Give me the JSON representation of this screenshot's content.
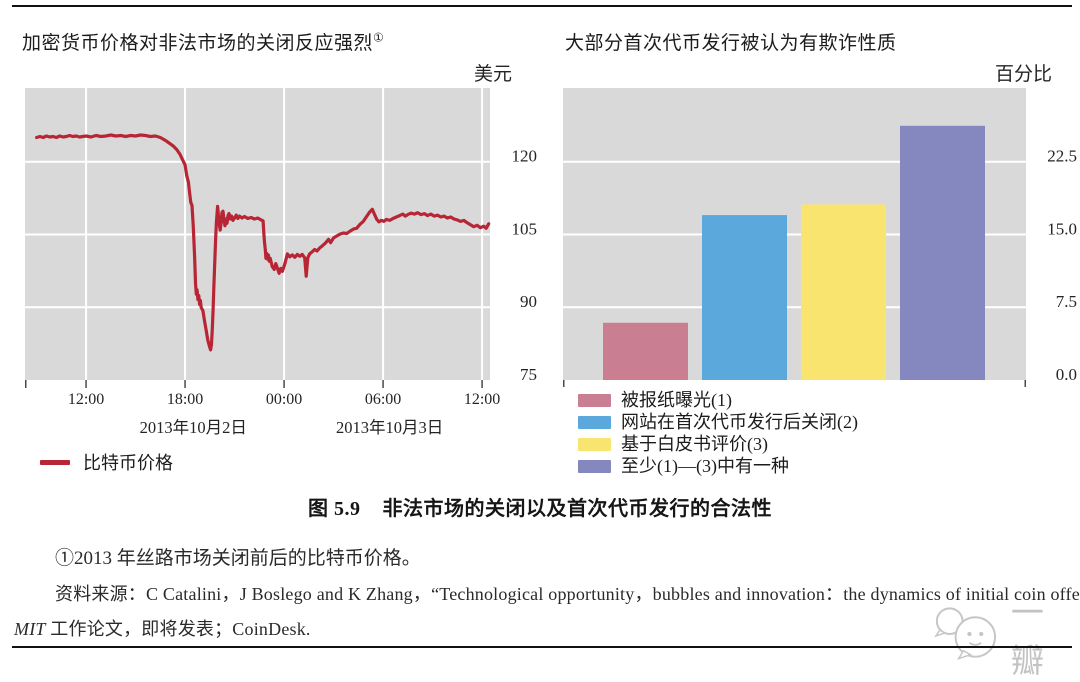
{
  "page": {
    "caption_label": "图 5.9",
    "caption_title": "非法市场的关闭以及首次代币发行的合法性",
    "footnote": "①2013 年丝路市场关闭前后的比特币价格。",
    "source_line1": "资料来源：C Catalini，J Boslego and K Zhang，“Technological opportunity，bubbles and innovation：the dynamics of initial coin offerings”，",
    "source_italic": "MIT",
    "source_line2_rest": " 工作论文，即将发表；CoinDesk.",
    "watermark_text": "一瓣"
  },
  "chart_data": [
    {
      "type": "line",
      "title": "加密货币价格对非法市场的关闭反应强烈",
      "title_sup": "①",
      "unit_label": "美元",
      "plot_bg": "#d9d9d9",
      "grid_color": "#ffffff",
      "x_ticks": [
        "12:00",
        "18:00",
        "00:00",
        "06:00",
        "12:00"
      ],
      "x_tick_hours": [
        0,
        6,
        12,
        18,
        24
      ],
      "x_date_labels": [
        "2013年10月2日",
        "2013年10月3日"
      ],
      "y_tick_labels": [
        "75",
        "90",
        "105",
        "120"
      ],
      "y_tick_values": [
        75,
        90,
        105,
        120
      ],
      "ylim": [
        75,
        135.2
      ],
      "xlim_hours": [
        -3.7,
        24.48
      ],
      "series": [
        {
          "name": "比特币价格",
          "color": "#b82534",
          "points": [
            [
              -3.0,
              125.0
            ],
            [
              -2.8,
              125.2
            ],
            [
              -2.6,
              125.0
            ],
            [
              -2.4,
              125.3
            ],
            [
              -2.2,
              125.1
            ],
            [
              -2.0,
              125.2
            ],
            [
              -1.8,
              125.0
            ],
            [
              -1.6,
              125.3
            ],
            [
              -1.4,
              125.1
            ],
            [
              -1.2,
              125.2
            ],
            [
              -1.0,
              125.4
            ],
            [
              -0.8,
              125.2
            ],
            [
              -0.6,
              125.3
            ],
            [
              -0.4,
              125.1
            ],
            [
              -0.2,
              125.2
            ],
            [
              0.0,
              125.3
            ],
            [
              0.3,
              125.1
            ],
            [
              0.6,
              125.4
            ],
            [
              0.9,
              125.2
            ],
            [
              1.2,
              125.3
            ],
            [
              1.5,
              125.5
            ],
            [
              1.8,
              125.3
            ],
            [
              2.1,
              125.4
            ],
            [
              2.4,
              125.2
            ],
            [
              2.7,
              125.4
            ],
            [
              3.0,
              125.3
            ],
            [
              3.3,
              125.5
            ],
            [
              3.6,
              125.4
            ],
            [
              3.9,
              125.2
            ],
            [
              4.2,
              125.3
            ],
            [
              4.5,
              125.0
            ],
            [
              4.7,
              124.6
            ],
            [
              4.9,
              124.2
            ],
            [
              5.1,
              123.7
            ],
            [
              5.3,
              123.2
            ],
            [
              5.5,
              122.5
            ],
            [
              5.7,
              121.5
            ],
            [
              5.85,
              120.4
            ],
            [
              6.0,
              119.3
            ],
            [
              6.1,
              117.2
            ],
            [
              6.2,
              115.8
            ],
            [
              6.28,
              113.4
            ],
            [
              6.35,
              111.6
            ],
            [
              6.42,
              111.0
            ],
            [
              6.5,
              106.5
            ],
            [
              6.58,
              100.5
            ],
            [
              6.63,
              95.0
            ],
            [
              6.68,
              92.7
            ],
            [
              6.73,
              93.6
            ],
            [
              6.78,
              91.6
            ],
            [
              6.83,
              92.4
            ],
            [
              6.88,
              90.6
            ],
            [
              6.93,
              91.4
            ],
            [
              6.98,
              89.9
            ],
            [
              7.08,
              89.3
            ],
            [
              7.18,
              87.2
            ],
            [
              7.28,
              85.2
            ],
            [
              7.38,
              83.2
            ],
            [
              7.48,
              81.9
            ],
            [
              7.55,
              81.2
            ],
            [
              7.6,
              82.4
            ],
            [
              7.65,
              85.5
            ],
            [
              7.7,
              89.5
            ],
            [
              7.75,
              94.5
            ],
            [
              7.8,
              99.5
            ],
            [
              7.85,
              104.0
            ],
            [
              7.9,
              107.5
            ],
            [
              7.97,
              110.8
            ],
            [
              8.03,
              108.5
            ],
            [
              8.08,
              107.0
            ],
            [
              8.13,
              105.9
            ],
            [
              8.18,
              107.2
            ],
            [
              8.24,
              109.6
            ],
            [
              8.3,
              109.8
            ],
            [
              8.36,
              107.9
            ],
            [
              8.42,
              106.8
            ],
            [
              8.48,
              108.2
            ],
            [
              8.54,
              107.3
            ],
            [
              8.6,
              108.9
            ],
            [
              8.66,
              109.3
            ],
            [
              8.74,
              108.2
            ],
            [
              8.82,
              108.8
            ],
            [
              8.9,
              107.9
            ],
            [
              9.0,
              108.4
            ],
            [
              9.1,
              109.0
            ],
            [
              9.2,
              108.3
            ],
            [
              9.3,
              108.8
            ],
            [
              9.45,
              108.4
            ],
            [
              9.6,
              108.7
            ],
            [
              9.8,
              108.3
            ],
            [
              10.0,
              108.5
            ],
            [
              10.2,
              108.2
            ],
            [
              10.4,
              108.4
            ],
            [
              10.55,
              108.1
            ],
            [
              10.73,
              107.8
            ],
            [
              10.78,
              105.0
            ],
            [
              10.82,
              103.2
            ],
            [
              10.86,
              101.9
            ],
            [
              10.9,
              100.1
            ],
            [
              10.95,
              101.1
            ],
            [
              11.0,
              99.9
            ],
            [
              11.05,
              100.8
            ],
            [
              11.1,
              99.5
            ],
            [
              11.16,
              100.1
            ],
            [
              11.28,
              98.4
            ],
            [
              11.4,
              97.8
            ],
            [
              11.5,
              99.0
            ],
            [
              11.6,
              98.0
            ],
            [
              11.7,
              97.0
            ],
            [
              11.8,
              98.0
            ],
            [
              11.9,
              97.4
            ],
            [
              12.05,
              99.0
            ],
            [
              12.2,
              101.0
            ],
            [
              12.35,
              100.4
            ],
            [
              12.5,
              100.8
            ],
            [
              12.65,
              100.3
            ],
            [
              12.8,
              100.9
            ],
            [
              12.95,
              100.5
            ],
            [
              13.1,
              100.9
            ],
            [
              13.25,
              100.2
            ],
            [
              13.34,
              96.4
            ],
            [
              13.44,
              100.2
            ],
            [
              13.55,
              101.0
            ],
            [
              13.7,
              101.4
            ],
            [
              13.85,
              101.9
            ],
            [
              14.0,
              101.6
            ],
            [
              14.15,
              102.2
            ],
            [
              14.3,
              102.6
            ],
            [
              14.5,
              103.2
            ],
            [
              14.7,
              104.0
            ],
            [
              14.82,
              103.3
            ],
            [
              15.0,
              104.3
            ],
            [
              15.2,
              104.7
            ],
            [
              15.4,
              105.1
            ],
            [
              15.6,
              105.3
            ],
            [
              15.8,
              105.2
            ],
            [
              16.0,
              105.7
            ],
            [
              16.2,
              106.1
            ],
            [
              16.4,
              106.3
            ],
            [
              16.6,
              107.1
            ],
            [
              16.8,
              107.7
            ],
            [
              17.0,
              108.7
            ],
            [
              17.2,
              109.7
            ],
            [
              17.35,
              110.2
            ],
            [
              17.5,
              109.0
            ],
            [
              17.62,
              108.1
            ],
            [
              17.75,
              107.6
            ],
            [
              17.9,
              107.9
            ],
            [
              18.05,
              107.7
            ],
            [
              18.2,
              108.1
            ],
            [
              18.4,
              107.9
            ],
            [
              18.6,
              108.3
            ],
            [
              18.8,
              108.6
            ],
            [
              19.0,
              108.9
            ],
            [
              19.2,
              109.2
            ],
            [
              19.35,
              108.8
            ],
            [
              19.5,
              109.1
            ],
            [
              19.7,
              109.4
            ],
            [
              19.9,
              109.2
            ],
            [
              20.1,
              109.5
            ],
            [
              20.3,
              109.1
            ],
            [
              20.5,
              109.3
            ],
            [
              20.7,
              108.9
            ],
            [
              20.9,
              109.2
            ],
            [
              21.1,
              108.8
            ],
            [
              21.3,
              109.0
            ],
            [
              21.5,
              108.6
            ],
            [
              21.7,
              108.8
            ],
            [
              21.9,
              108.4
            ],
            [
              22.1,
              108.6
            ],
            [
              22.3,
              108.2
            ],
            [
              22.5,
              108.0
            ],
            [
              22.7,
              107.7
            ],
            [
              22.9,
              107.9
            ],
            [
              23.1,
              107.4
            ],
            [
              23.3,
              107.0
            ],
            [
              23.5,
              106.6
            ],
            [
              23.7,
              106.9
            ],
            [
              23.9,
              106.4
            ],
            [
              24.1,
              106.7
            ],
            [
              24.25,
              106.3
            ],
            [
              24.4,
              107.2
            ]
          ]
        }
      ]
    },
    {
      "type": "bar",
      "title": "大部分首次代币发行被认为有欺诈性质",
      "unit_label": "百分比",
      "plot_bg": "#d9d9d9",
      "grid_color": "#ffffff",
      "categories": [
        "被报纸曝光(1)",
        "网站在首次代币发行后关闭(2)",
        "基于白皮书评价(3)",
        "至少(1)—(3)中有一种"
      ],
      "values": [
        5.9,
        17.0,
        18.1,
        26.2
      ],
      "colors": [
        "#ca7e92",
        "#5ba9dc",
        "#f8e46f",
        "#8587bf"
      ],
      "y_tick_labels": [
        "0.0",
        "7.5",
        "15.0",
        "22.5"
      ],
      "y_tick_values": [
        0,
        7.5,
        15,
        22.5
      ],
      "ylim": [
        0,
        30.1
      ],
      "legend_position": "below"
    }
  ]
}
